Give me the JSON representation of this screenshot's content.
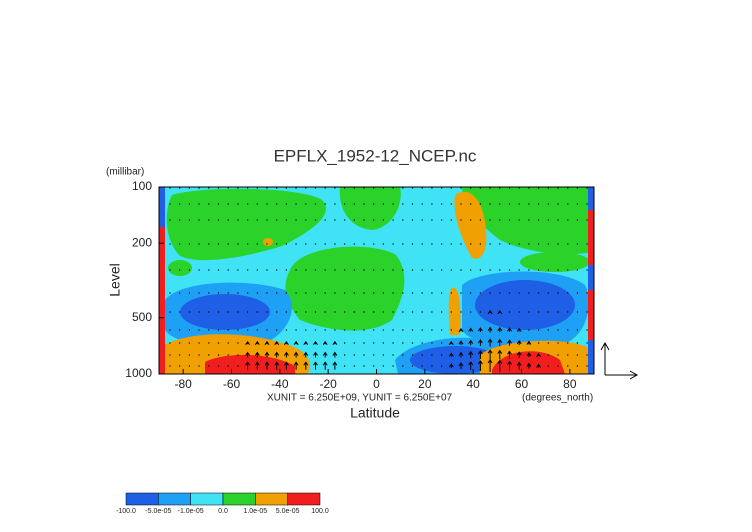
{
  "chart_data": {
    "type": "contour",
    "title": "EPFLX_1952-12_NCEP.nc",
    "x_label": "Latitude",
    "y_label": "Level",
    "y_unit_label": "(millibar)",
    "x_unit_label": "(degrees_north)",
    "vector_scale_label": "XUNIT = 6.250E+09, YUNIT = 6.250E+07",
    "xlim": [
      -90,
      90
    ],
    "xticks": [
      -80,
      -60,
      -40,
      -20,
      0,
      20,
      40,
      60,
      80
    ],
    "ylim": [
      1000,
      100
    ],
    "y_log": true,
    "yticks": [
      100,
      200,
      500,
      1000
    ],
    "colorbar": {
      "levels": [
        {
          "value": -100,
          "label": "-100.0"
        },
        {
          "value": -5e-05,
          "label": "-5.0e-05"
        },
        {
          "value": -1e-05,
          "label": "-1.0e-05"
        },
        {
          "value": 0,
          "label": "0.0"
        },
        {
          "value": 1e-05,
          "label": "1.0e-05"
        },
        {
          "value": 5e-05,
          "label": "5.0e-05"
        },
        {
          "value": 100,
          "label": "100.0"
        }
      ],
      "colors": [
        "#1e5fe6",
        "#1ea0f5",
        "#3fe3f5",
        "#2ad22a",
        "#f0a000",
        "#f01e1e"
      ]
    }
  }
}
